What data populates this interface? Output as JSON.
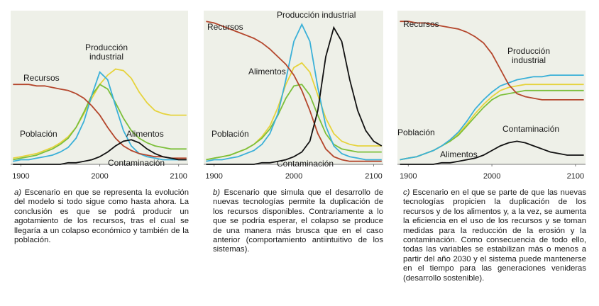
{
  "chart_data": [
    {
      "type": "line",
      "label": "a)",
      "caption": "Escenario en que se representa la evolución del modelo si todo sigue como hasta ahora. La conclusión es que se podrá producir un agotamiento de los recursos, tras el cual se llegaría a un colapso económico y también de la población.",
      "x": [
        1890,
        1900,
        1910,
        1920,
        1930,
        1940,
        1950,
        1960,
        1970,
        1980,
        1990,
        2000,
        2010,
        2020,
        2030,
        2040,
        2050,
        2060,
        2070,
        2080,
        2090,
        2100,
        2110
      ],
      "xlim": [
        1887,
        2112
      ],
      "xticks": [
        1900,
        2000,
        2100
      ],
      "ylim": [
        0,
        100
      ],
      "series": [
        {
          "name": "Recursos",
          "color": "#b4462c",
          "values": [
            52,
            52,
            52,
            51,
            51,
            50,
            49,
            48,
            46,
            43,
            38,
            32,
            24,
            17,
            12,
            9,
            7,
            6,
            5,
            5,
            4,
            4,
            4
          ]
        },
        {
          "name": "Producción industrial",
          "color": "#3ab0d8",
          "values": [
            2,
            3,
            3,
            4,
            5,
            6,
            8,
            11,
            17,
            28,
            45,
            60,
            55,
            38,
            22,
            12,
            7,
            5,
            4,
            3,
            3,
            3,
            3
          ]
        },
        {
          "name": "Alimentos",
          "color": "#e6d33c",
          "values": [
            4,
            5,
            6,
            7,
            9,
            11,
            14,
            18,
            24,
            33,
            43,
            52,
            58,
            62,
            61,
            56,
            47,
            40,
            35,
            33,
            32,
            32,
            32
          ]
        },
        {
          "name": "Población",
          "color": "#7cbf3a",
          "values": [
            3,
            4,
            5,
            6,
            8,
            10,
            13,
            17,
            24,
            34,
            45,
            52,
            49,
            40,
            30,
            22,
            17,
            14,
            12,
            11,
            10,
            10,
            10
          ]
        },
        {
          "name": "Contaminación",
          "color": "#111111",
          "values": [
            0,
            0,
            0,
            0,
            0,
            0,
            0,
            1,
            1,
            2,
            3,
            5,
            8,
            12,
            15,
            16,
            14,
            10,
            7,
            5,
            4,
            3,
            3
          ]
        }
      ]
    },
    {
      "type": "line",
      "label": "b)",
      "caption": "Escenario que simula que el desarrollo de nuevas tecnologías permite la duplicación de los recursos disponibles. Contrariamente a lo que se podría esperar, el colapso se produce de una manera más brusca que en el caso anterior (comportamiento antiintuitivo de los sistemas).",
      "x": [
        1890,
        1900,
        1910,
        1920,
        1930,
        1940,
        1950,
        1960,
        1970,
        1980,
        1990,
        2000,
        2010,
        2020,
        2030,
        2040,
        2050,
        2060,
        2070,
        2080,
        2090,
        2100,
        2110
      ],
      "xlim": [
        1887,
        2112
      ],
      "xticks": [
        1900,
        2000,
        2100
      ],
      "ylim": [
        0,
        100
      ],
      "series": [
        {
          "name": "Recursos",
          "color": "#b4462c",
          "values": [
            93,
            92,
            90,
            88,
            86,
            84,
            82,
            79,
            75,
            70,
            65,
            58,
            48,
            35,
            20,
            10,
            5,
            3,
            2,
            2,
            2,
            2,
            2
          ]
        },
        {
          "name": "Producción industrial",
          "color": "#3ab0d8",
          "values": [
            2,
            3,
            3,
            4,
            5,
            7,
            9,
            13,
            20,
            33,
            55,
            80,
            91,
            80,
            50,
            25,
            12,
            7,
            5,
            4,
            3,
            3,
            3
          ]
        },
        {
          "name": "Alimentos",
          "color": "#e6d33c",
          "values": [
            3,
            4,
            5,
            6,
            8,
            10,
            13,
            18,
            25,
            37,
            52,
            63,
            66,
            60,
            45,
            30,
            20,
            15,
            13,
            12,
            12,
            12,
            12
          ]
        },
        {
          "name": "Población",
          "color": "#7cbf3a",
          "values": [
            3,
            4,
            5,
            6,
            8,
            10,
            13,
            17,
            23,
            32,
            43,
            51,
            52,
            45,
            32,
            20,
            13,
            10,
            9,
            8,
            8,
            8,
            8
          ]
        },
        {
          "name": "Contaminación",
          "color": "#111111",
          "values": [
            0,
            0,
            0,
            0,
            0,
            0,
            0,
            1,
            1,
            2,
            3,
            5,
            8,
            15,
            35,
            70,
            89,
            80,
            55,
            35,
            22,
            15,
            12
          ]
        }
      ]
    },
    {
      "type": "line",
      "label": "c)",
      "caption": "Escenario en el que se parte de que las nuevas tecnologías propicien la duplicación de los recursos y de los alimentos y, a la vez, se aumenta la eficiencia en el uso de los recursos y se toman medidas para la reducción de la erosión y la contaminación. Como consecuencia de todo ello, todas las variables se estabilizan más o menos a partir del año 2030 y el sistema puede mantenerse en el tiempo para las generaciones venideras (desarrollo sostenible).",
      "x": [
        1890,
        1900,
        1910,
        1920,
        1930,
        1940,
        1950,
        1960,
        1970,
        1980,
        1990,
        2000,
        2010,
        2020,
        2030,
        2040,
        2050,
        2060,
        2070,
        2080,
        2090,
        2100,
        2110
      ],
      "xlim": [
        1887,
        2112
      ],
      "xticks": [
        1900,
        2000,
        2100
      ],
      "ylim": [
        0,
        100
      ],
      "series": [
        {
          "name": "Recursos",
          "color": "#b4462c",
          "values": [
            93,
            93,
            92,
            92,
            91,
            90,
            89,
            88,
            86,
            83,
            79,
            72,
            62,
            52,
            46,
            44,
            43,
            42,
            42,
            42,
            42,
            42,
            42
          ]
        },
        {
          "name": "Producción industrial",
          "color": "#3ab0d8",
          "values": [
            3,
            4,
            5,
            7,
            9,
            12,
            16,
            21,
            28,
            36,
            42,
            47,
            51,
            53,
            55,
            56,
            57,
            57,
            58,
            58,
            58,
            58,
            58
          ]
        },
        {
          "name": "Alimentos",
          "color": "#e6d33c",
          "values": [
            3,
            4,
            5,
            7,
            9,
            12,
            15,
            20,
            26,
            33,
            39,
            44,
            48,
            50,
            51,
            52,
            52,
            52,
            52,
            52,
            52,
            52,
            52
          ]
        },
        {
          "name": "Población",
          "color": "#7cbf3a",
          "values": [
            3,
            4,
            5,
            7,
            9,
            12,
            15,
            19,
            25,
            31,
            37,
            42,
            45,
            46,
            47,
            48,
            48,
            48,
            48,
            48,
            48,
            48,
            48
          ]
        },
        {
          "name": "Contaminación",
          "color": "#111111",
          "values": [
            0,
            0,
            0,
            0,
            0,
            1,
            1,
            2,
            3,
            4,
            6,
            9,
            12,
            14,
            15,
            14,
            12,
            10,
            8,
            7,
            6,
            6,
            6
          ]
        }
      ]
    }
  ]
}
